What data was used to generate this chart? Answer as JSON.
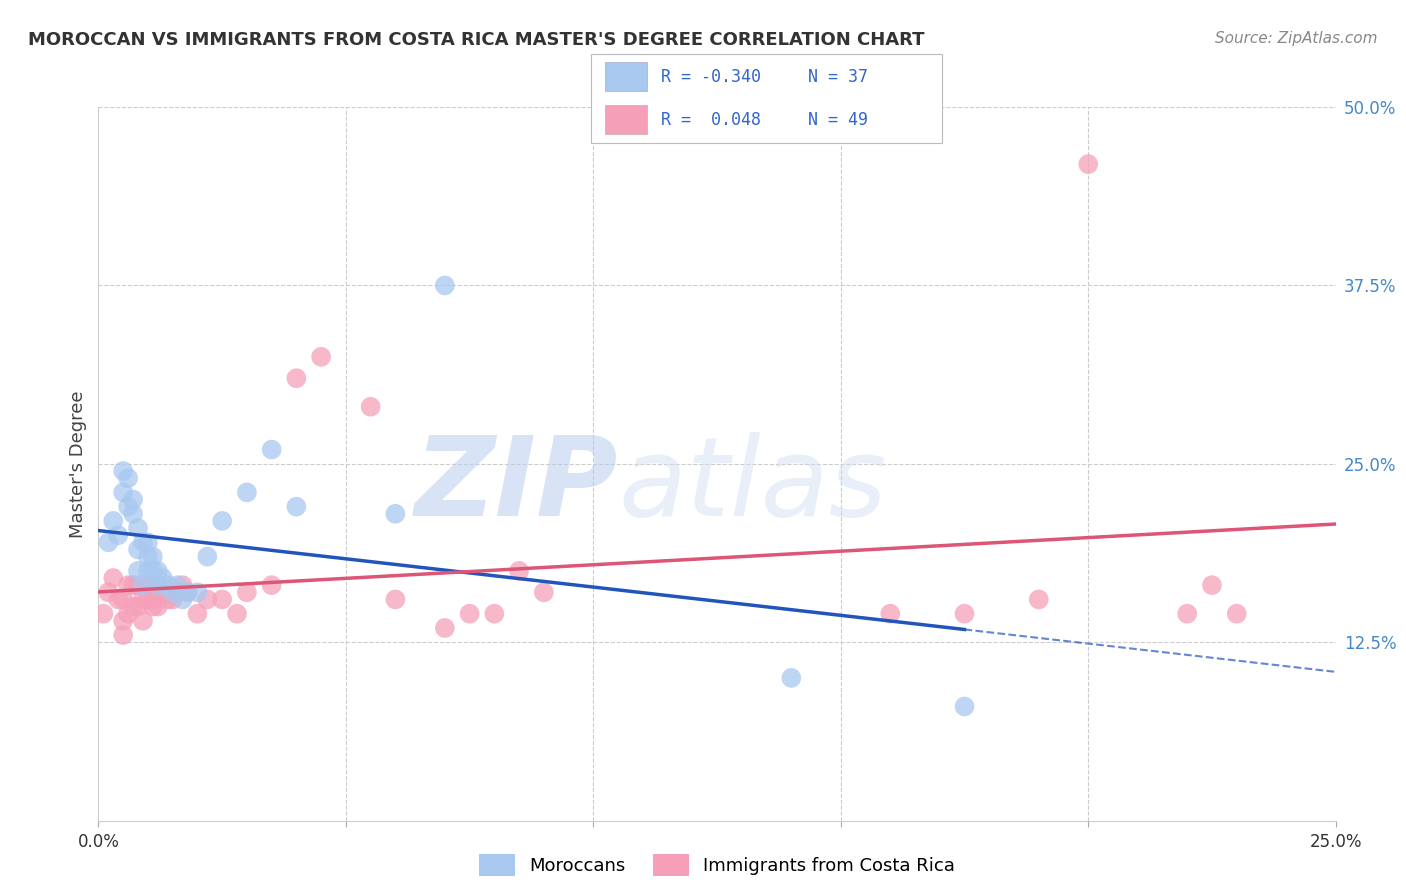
{
  "title": "MOROCCAN VS IMMIGRANTS FROM COSTA RICA MASTER'S DEGREE CORRELATION CHART",
  "source": "Source: ZipAtlas.com",
  "ylabel": "Master's Degree",
  "xlim": [
    0.0,
    0.25
  ],
  "ylim": [
    0.0,
    0.5
  ],
  "yticks_right": [
    0.5,
    0.375,
    0.25,
    0.125,
    0.0
  ],
  "ytick_labels_right": [
    "50.0%",
    "37.5%",
    "25.0%",
    "12.5%",
    ""
  ],
  "blue_color": "#A8C8F0",
  "pink_color": "#F5A0B8",
  "blue_line_color": "#2255BB",
  "pink_line_color": "#DD5577",
  "watermark_zip": "ZIP",
  "watermark_atlas": "atlas",
  "legend_label_blue": "Moroccans",
  "legend_label_pink": "Immigrants from Costa Rica",
  "blue_R": "-0.340",
  "blue_N": "37",
  "pink_R": "0.048",
  "pink_N": "49",
  "blue_x": [
    0.002,
    0.003,
    0.004,
    0.005,
    0.005,
    0.006,
    0.006,
    0.007,
    0.007,
    0.008,
    0.008,
    0.008,
    0.009,
    0.009,
    0.01,
    0.01,
    0.01,
    0.011,
    0.011,
    0.012,
    0.012,
    0.013,
    0.014,
    0.015,
    0.016,
    0.017,
    0.018,
    0.02,
    0.022,
    0.025,
    0.03,
    0.035,
    0.04,
    0.06,
    0.07,
    0.14,
    0.175
  ],
  "blue_y": [
    0.195,
    0.21,
    0.2,
    0.23,
    0.245,
    0.22,
    0.24,
    0.215,
    0.225,
    0.205,
    0.19,
    0.175,
    0.195,
    0.165,
    0.195,
    0.185,
    0.175,
    0.185,
    0.175,
    0.175,
    0.165,
    0.17,
    0.165,
    0.16,
    0.165,
    0.155,
    0.16,
    0.16,
    0.185,
    0.21,
    0.23,
    0.26,
    0.22,
    0.215,
    0.375,
    0.1,
    0.08
  ],
  "pink_x": [
    0.001,
    0.002,
    0.003,
    0.004,
    0.005,
    0.005,
    0.005,
    0.006,
    0.006,
    0.007,
    0.007,
    0.008,
    0.008,
    0.009,
    0.009,
    0.01,
    0.01,
    0.011,
    0.011,
    0.012,
    0.012,
    0.013,
    0.014,
    0.015,
    0.016,
    0.017,
    0.018,
    0.02,
    0.022,
    0.025,
    0.028,
    0.03,
    0.035,
    0.04,
    0.045,
    0.055,
    0.06,
    0.07,
    0.075,
    0.08,
    0.085,
    0.09,
    0.16,
    0.175,
    0.19,
    0.2,
    0.22,
    0.225,
    0.23
  ],
  "pink_y": [
    0.145,
    0.16,
    0.17,
    0.155,
    0.155,
    0.14,
    0.13,
    0.165,
    0.145,
    0.165,
    0.15,
    0.165,
    0.15,
    0.155,
    0.14,
    0.165,
    0.155,
    0.155,
    0.15,
    0.165,
    0.15,
    0.16,
    0.155,
    0.155,
    0.16,
    0.165,
    0.16,
    0.145,
    0.155,
    0.155,
    0.145,
    0.16,
    0.165,
    0.31,
    0.325,
    0.29,
    0.155,
    0.135,
    0.145,
    0.145,
    0.175,
    0.16,
    0.145,
    0.145,
    0.155,
    0.46,
    0.145,
    0.165,
    0.145
  ]
}
